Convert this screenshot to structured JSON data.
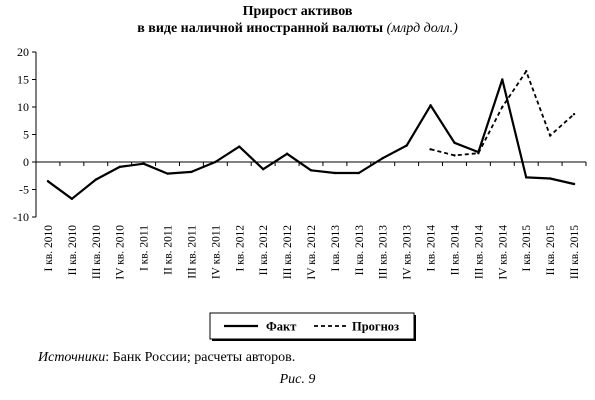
{
  "chart_data": {
    "type": "line",
    "title": "Прирост активов",
    "subtitle": "в виде наличной иностранной валюты",
    "unit": "(млрд долл.)",
    "xlabel": "",
    "ylabel": "",
    "ylim": [
      -10,
      20
    ],
    "yticks": [
      -10,
      -5,
      0,
      5,
      10,
      15,
      20
    ],
    "categories": [
      "I кв. 2010",
      "II кв. 2010",
      "III кв. 2010",
      "IV кв. 2010",
      "I кв. 2011",
      "II кв. 2011",
      "III кв. 2011",
      "IV кв. 2011",
      "I кв. 2012",
      "II кв. 2012",
      "III кв. 2012",
      "IV кв. 2012",
      "I кв. 2013",
      "II кв. 2013",
      "III кв. 2013",
      "IV кв. 2013",
      "I кв. 2014",
      "II кв. 2014",
      "III кв. 2014",
      "IV кв. 2014",
      "I кв. 2015",
      "II кв. 2015",
      "III кв. 2015"
    ],
    "series": [
      {
        "name": "Факт",
        "style": "solid",
        "values": [
          -3.5,
          -6.7,
          -3.2,
          -0.9,
          -0.3,
          -2.1,
          -1.8,
          0.0,
          2.8,
          -1.3,
          1.5,
          -1.5,
          -2.0,
          -2.0,
          0.7,
          3.0,
          10.3,
          3.5,
          1.8,
          15.0,
          -2.8,
          -3.0,
          -4.0
        ]
      },
      {
        "name": "Прогноз",
        "style": "dashed",
        "values": [
          null,
          null,
          null,
          null,
          null,
          null,
          null,
          null,
          null,
          null,
          null,
          null,
          null,
          null,
          null,
          null,
          2.3,
          1.2,
          1.6,
          10.0,
          16.5,
          4.8,
          8.7
        ]
      }
    ],
    "grid": false,
    "legend": "bottom-center"
  },
  "source": {
    "label": "Источники",
    "text": ": Банк России; расчеты авторов."
  },
  "caption": "Рис. 9"
}
